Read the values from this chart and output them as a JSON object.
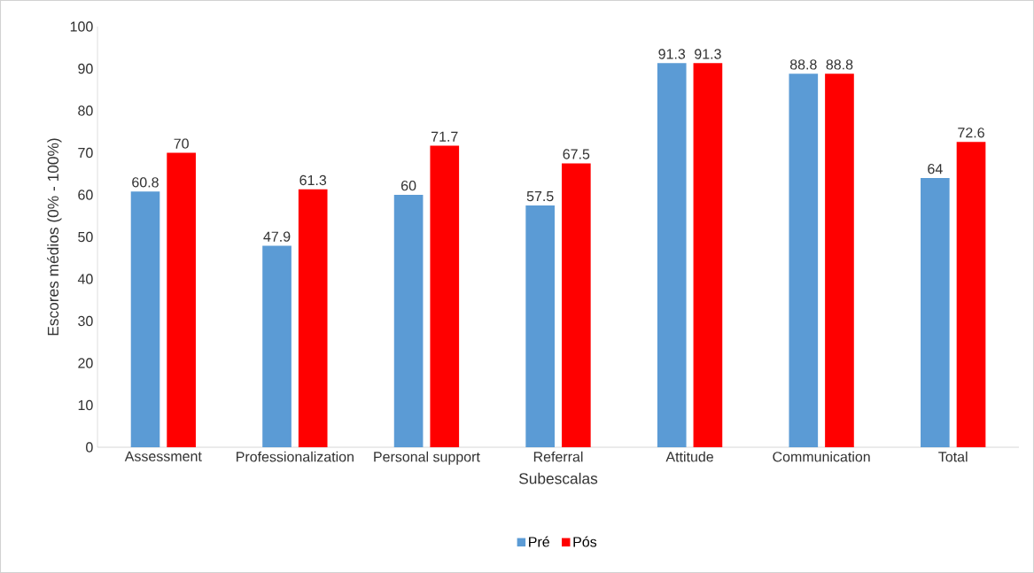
{
  "chart_data": {
    "type": "bar",
    "xlabel": "Subescalas",
    "ylabel": "Escores médios (0% - 100%)",
    "categories": [
      "Assessment",
      "Professionalization",
      "Personal support",
      "Referral",
      "Attitude",
      "Communication",
      "Total"
    ],
    "series": [
      {
        "name": "Pré",
        "color": "#5b9bd5",
        "values": [
          60.8,
          47.9,
          60,
          57.5,
          91.3,
          88.8,
          64
        ]
      },
      {
        "name": "Pós",
        "color": "#ff0000",
        "values": [
          70,
          61.3,
          71.7,
          67.5,
          91.3,
          88.8,
          72.6
        ]
      }
    ],
    "ylim": [
      0,
      100
    ],
    "yticks": [
      0,
      10,
      20,
      30,
      40,
      50,
      60,
      70,
      80,
      90,
      100
    ],
    "data_labels": true,
    "grid": false,
    "legend": "bottom"
  }
}
